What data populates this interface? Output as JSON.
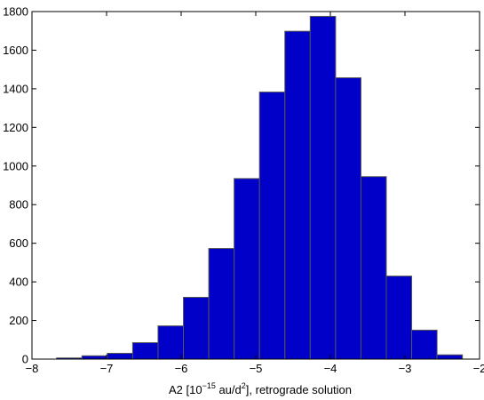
{
  "chart_data": {
    "type": "bar",
    "subtype": "histogram",
    "title": "",
    "xlabel": {
      "prefix": "A2 [10",
      "exponent": "−15",
      "middle": " au/d",
      "exponent2": "2",
      "suffix": "], retrograde solution"
    },
    "ylabel": "",
    "xlim": [
      -8,
      -2
    ],
    "ylim": [
      0,
      1800
    ],
    "xticks": [
      -8,
      -7,
      -6,
      -5,
      -4,
      -3,
      -2
    ],
    "xtick_labels": [
      "−8",
      "−7",
      "−6",
      "−5",
      "−4",
      "−3",
      "−2"
    ],
    "yticks": [
      0,
      200,
      400,
      600,
      800,
      1000,
      1200,
      1400,
      1600,
      1800
    ],
    "ytick_labels": [
      "0",
      "200",
      "400",
      "600",
      "800",
      "1000",
      "1200",
      "1400",
      "1600",
      "1800"
    ],
    "bin_edges": [
      -7.67,
      -7.33,
      -6.99,
      -6.65,
      -6.31,
      -5.97,
      -5.63,
      -5.29,
      -4.95,
      -4.61,
      -4.27,
      -3.93,
      -3.59,
      -3.25,
      -2.91,
      -2.57,
      -2.23
    ],
    "values": [
      6,
      17,
      30,
      85,
      172,
      320,
      573,
      935,
      1383,
      1698,
      1775,
      1457,
      945,
      430,
      150,
      22
    ],
    "grid": false,
    "legend": false,
    "colors": {
      "bar_fill": "#0000c8",
      "bar_edge": "#555555",
      "axis": "#000000",
      "background": "#ffffff"
    }
  }
}
